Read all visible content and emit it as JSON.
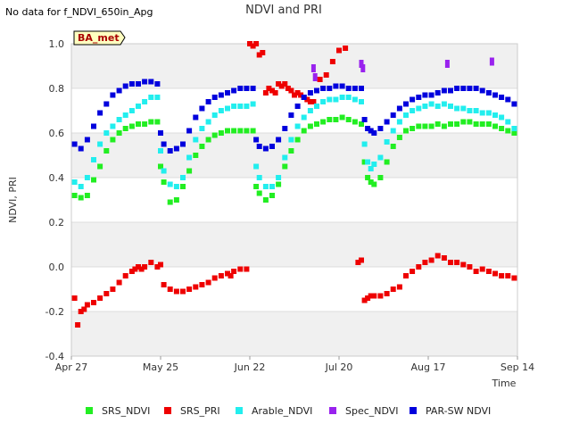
{
  "chart_data": {
    "type": "scatter",
    "title": "NDVI and PRI",
    "note": "No data for f_NDVI_650in_Apg",
    "badge": "BA_met",
    "xlabel": "Time",
    "ylabel": "NDVI, PRI",
    "ylim": [
      -0.4,
      1.0
    ],
    "xlim": [
      0,
      140
    ],
    "y_ticks": [
      -0.4,
      -0.2,
      0.0,
      0.2,
      0.4,
      0.6,
      0.8,
      1.0
    ],
    "y_tick_labels": [
      "-0.4",
      "-0.2",
      "0.0",
      "0.2",
      "0.4",
      "0.6",
      "0.8",
      "1.0"
    ],
    "x_ticks": [
      0,
      28,
      56,
      84,
      112,
      140
    ],
    "x_tick_labels": [
      "Apr 27",
      "May 25",
      "Jun 22",
      "Jul 20",
      "Aug 17",
      "Sep 14"
    ],
    "grid": true,
    "legend_position": "bottom",
    "colors": {
      "SRS_NDVI": "#22ee22",
      "SRS_PRI": "#ee0000",
      "Arable_NDVI": "#22eeee",
      "Spec_NDVI": "#9922ee",
      "PAR-SW NDVI": "#0000dd",
      "badge_fill": "#ffffc0",
      "badge_text": "#aa0000",
      "band": "#f0f0f0"
    },
    "series": [
      {
        "name": "SRS_NDVI",
        "x": [
          1,
          3,
          5,
          7,
          9,
          11,
          13,
          15,
          17,
          19,
          21,
          23,
          25,
          27,
          28,
          29,
          31,
          33,
          35,
          37,
          39,
          41,
          43,
          45,
          47,
          49,
          51,
          53,
          55,
          57,
          58,
          59,
          61,
          63,
          65,
          67,
          69,
          71,
          73,
          75,
          77,
          79,
          81,
          83,
          85,
          87,
          89,
          91,
          92,
          93,
          94,
          95,
          97,
          99,
          101,
          103,
          105,
          107,
          109,
          111,
          113,
          115,
          117,
          119,
          121,
          123,
          125,
          127,
          129,
          131,
          133,
          135,
          137,
          139
        ],
        "y": [
          0.32,
          0.31,
          0.32,
          0.39,
          0.45,
          0.52,
          0.57,
          0.6,
          0.62,
          0.63,
          0.64,
          0.64,
          0.65,
          0.65,
          0.45,
          0.38,
          0.29,
          0.3,
          0.36,
          0.43,
          0.5,
          0.54,
          0.57,
          0.59,
          0.6,
          0.61,
          0.61,
          0.61,
          0.61,
          0.61,
          0.36,
          0.33,
          0.3,
          0.32,
          0.37,
          0.45,
          0.52,
          0.57,
          0.61,
          0.63,
          0.64,
          0.65,
          0.66,
          0.66,
          0.67,
          0.66,
          0.65,
          0.64,
          0.47,
          0.4,
          0.38,
          0.37,
          0.4,
          0.47,
          0.54,
          0.58,
          0.61,
          0.62,
          0.63,
          0.63,
          0.63,
          0.64,
          0.63,
          0.64,
          0.64,
          0.65,
          0.65,
          0.64,
          0.64,
          0.64,
          0.63,
          0.62,
          0.61,
          0.6
        ]
      },
      {
        "name": "SRS_PRI",
        "x": [
          1,
          2,
          3,
          4,
          5,
          7,
          9,
          11,
          13,
          15,
          17,
          19,
          20,
          21,
          22,
          23,
          25,
          27,
          28,
          29,
          31,
          33,
          35,
          37,
          39,
          41,
          43,
          45,
          47,
          49,
          50,
          51,
          53,
          55,
          56,
          57,
          58,
          59,
          60,
          61,
          62,
          63,
          64,
          65,
          66,
          67,
          68,
          69,
          70,
          71,
          72,
          73,
          74,
          75,
          76,
          78,
          80,
          82,
          84,
          86,
          90,
          91,
          92,
          93,
          94,
          95,
          97,
          99,
          101,
          103,
          105,
          107,
          109,
          111,
          113,
          115,
          117,
          119,
          121,
          123,
          125,
          127,
          129,
          131,
          133,
          135,
          137,
          139
        ],
        "y": [
          -0.14,
          -0.26,
          -0.2,
          -0.19,
          -0.17,
          -0.16,
          -0.14,
          -0.12,
          -0.1,
          -0.07,
          -0.04,
          -0.02,
          -0.01,
          0.0,
          -0.01,
          0.0,
          0.02,
          0.0,
          0.01,
          -0.08,
          -0.1,
          -0.11,
          -0.11,
          -0.1,
          -0.09,
          -0.08,
          -0.07,
          -0.05,
          -0.04,
          -0.03,
          -0.04,
          -0.02,
          -0.01,
          -0.01,
          1.0,
          0.99,
          1.0,
          0.95,
          0.96,
          0.78,
          0.8,
          0.79,
          0.78,
          0.82,
          0.81,
          0.82,
          0.8,
          0.79,
          0.77,
          0.78,
          0.77,
          0.76,
          0.75,
          0.74,
          0.74,
          0.84,
          0.86,
          0.92,
          0.97,
          0.98,
          0.02,
          0.03,
          -0.15,
          -0.14,
          -0.13,
          -0.13,
          -0.13,
          -0.12,
          -0.1,
          -0.09,
          -0.04,
          -0.02,
          0.0,
          0.02,
          0.03,
          0.05,
          0.04,
          0.02,
          0.02,
          0.01,
          0.0,
          -0.02,
          -0.01,
          -0.02,
          -0.03,
          -0.04,
          -0.04,
          -0.05
        ]
      },
      {
        "name": "Arable_NDVI",
        "x": [
          1,
          3,
          5,
          7,
          9,
          11,
          13,
          15,
          17,
          19,
          21,
          23,
          25,
          27,
          28,
          29,
          31,
          33,
          35,
          37,
          39,
          41,
          43,
          45,
          47,
          49,
          51,
          53,
          55,
          57,
          58,
          59,
          61,
          63,
          65,
          67,
          69,
          71,
          73,
          75,
          77,
          79,
          81,
          83,
          85,
          87,
          89,
          91,
          92,
          93,
          94,
          95,
          97,
          99,
          101,
          103,
          105,
          107,
          109,
          111,
          113,
          115,
          117,
          119,
          121,
          123,
          125,
          127,
          129,
          131,
          133,
          135,
          137,
          139
        ],
        "y": [
          0.38,
          0.36,
          0.4,
          0.48,
          0.55,
          0.6,
          0.63,
          0.66,
          0.68,
          0.7,
          0.72,
          0.74,
          0.76,
          0.76,
          0.52,
          0.43,
          0.37,
          0.36,
          0.4,
          0.49,
          0.57,
          0.62,
          0.65,
          0.68,
          0.7,
          0.71,
          0.72,
          0.72,
          0.72,
          0.73,
          0.45,
          0.4,
          0.36,
          0.36,
          0.4,
          0.49,
          0.57,
          0.63,
          0.67,
          0.7,
          0.72,
          0.74,
          0.75,
          0.75,
          0.76,
          0.76,
          0.75,
          0.74,
          0.55,
          0.47,
          0.44,
          0.46,
          0.49,
          0.56,
          0.61,
          0.65,
          0.68,
          0.7,
          0.71,
          0.72,
          0.73,
          0.72,
          0.73,
          0.72,
          0.71,
          0.71,
          0.7,
          0.7,
          0.69,
          0.69,
          0.68,
          0.67,
          0.65,
          0.62
        ]
      },
      {
        "name": "Spec_NDVI",
        "x": [
          76,
          76.5,
          91,
          91.5,
          118,
          132
        ],
        "y": [
          0.89,
          0.85,
          0.91,
          0.89,
          0.91,
          0.92
        ]
      },
      {
        "name": "PAR-SW NDVI",
        "x": [
          1,
          3,
          5,
          7,
          9,
          11,
          13,
          15,
          17,
          19,
          21,
          23,
          25,
          27,
          28,
          29,
          31,
          33,
          35,
          37,
          39,
          41,
          43,
          45,
          47,
          49,
          51,
          53,
          55,
          57,
          58,
          59,
          61,
          63,
          65,
          67,
          69,
          71,
          73,
          75,
          77,
          79,
          81,
          83,
          85,
          87,
          89,
          91,
          92,
          93,
          94,
          95,
          97,
          99,
          101,
          103,
          105,
          107,
          109,
          111,
          113,
          115,
          117,
          119,
          121,
          123,
          125,
          127,
          129,
          131,
          133,
          135,
          137,
          139
        ],
        "y": [
          0.55,
          0.53,
          0.57,
          0.63,
          0.69,
          0.73,
          0.77,
          0.79,
          0.81,
          0.82,
          0.82,
          0.83,
          0.83,
          0.82,
          0.6,
          0.55,
          0.52,
          0.53,
          0.55,
          0.61,
          0.67,
          0.71,
          0.74,
          0.76,
          0.77,
          0.78,
          0.79,
          0.8,
          0.8,
          0.8,
          0.57,
          0.54,
          0.53,
          0.54,
          0.57,
          0.62,
          0.68,
          0.72,
          0.76,
          0.78,
          0.79,
          0.8,
          0.8,
          0.81,
          0.81,
          0.8,
          0.8,
          0.8,
          0.66,
          0.62,
          0.61,
          0.6,
          0.62,
          0.65,
          0.68,
          0.71,
          0.73,
          0.75,
          0.76,
          0.77,
          0.77,
          0.78,
          0.79,
          0.79,
          0.8,
          0.8,
          0.8,
          0.8,
          0.79,
          0.78,
          0.77,
          0.76,
          0.75,
          0.73
        ]
      }
    ]
  }
}
